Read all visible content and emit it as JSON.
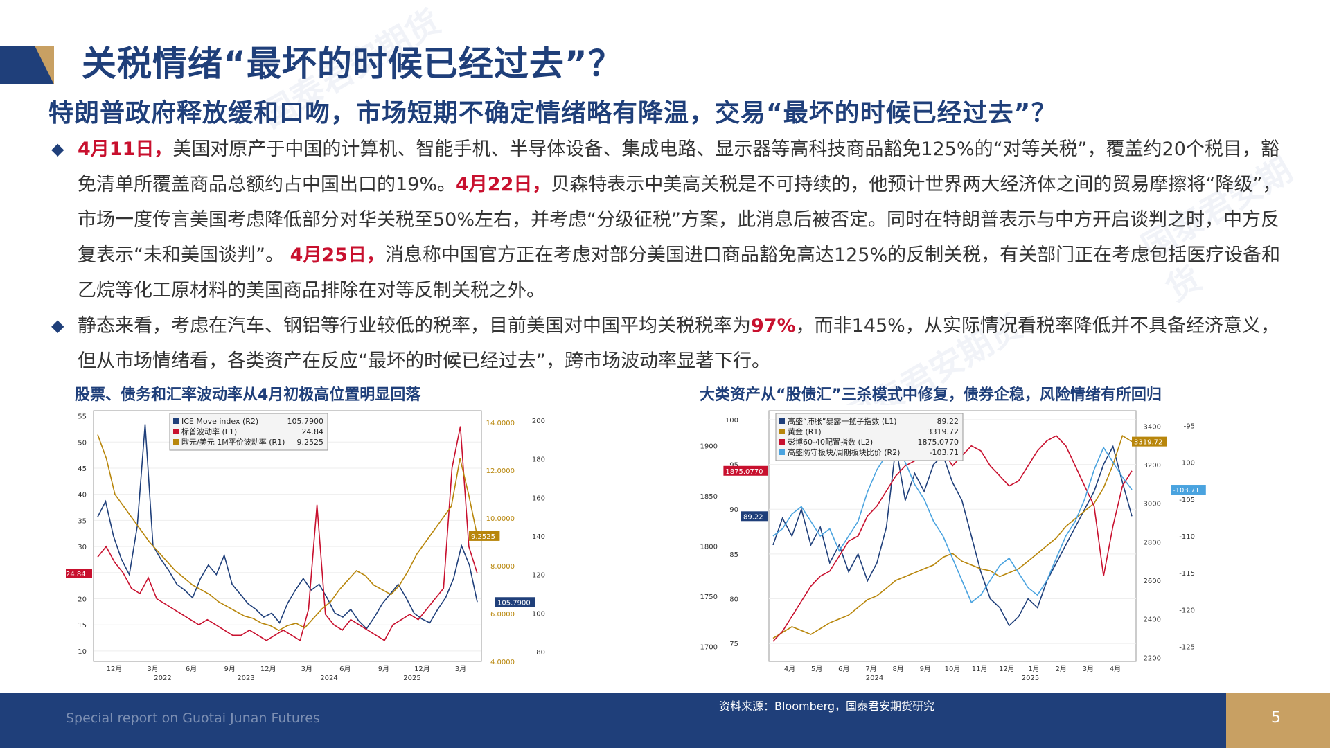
{
  "title": "关税情绪“最坏的时候已经过去”？",
  "subtitle": "特朗普政府释放缓和口吻，市场短期不确定情绪略有降温，交易“最坏的时候已经过去”？",
  "bullet_marker": "◆",
  "bullet1": {
    "d1": "4月11日，",
    "t1": "美国对原产于中国的计算机、智能手机、半导体设备、集成电路、显示器等高科技商品豁免125%的“对等关税”，覆盖约20个税目，豁免清单所覆盖商品总额约占中国出口的19%。",
    "d2": "4月22日，",
    "t2": "贝森特表示中美高关税是不可持续的，他预计世界两大经济体之间的贸易摩擦将“降级”，市场一度传言美国考虑降低部分对华关税至50%左右，并考虑“分级征税”方案，此消息后被否定。同时在特朗普表示与中方开启谈判之时，中方反复表示“未和美国谈判”。 ",
    "d3": "4月25日，",
    "t3": "消息称中国官方正在考虑对部分美国进口商品豁免高达125%的反制关税，有关部门正在考虑包括医疗设备和乙烷等化工原材料的美国商品排除在对等反制关税之外。"
  },
  "bullet2": {
    "t1": "静态来看，考虑在汽车、钢铝等行业较低的税率，目前美国对中国平均关税税率为",
    "hl": "97%",
    "t2": "，而非145%，从实际情况看税率降低并不具备经济意义，但从市场情绪看，各类资产在反应“最坏的时候已经过去”，跨市场波动率显著下行。"
  },
  "footer": {
    "left_text": "Special report on Guotai Junan Futures",
    "source": "资料来源：Bloomberg，国泰君安期货研究",
    "page": "5"
  },
  "watermark": "国泰君安期货",
  "chart_data": [
    {
      "type": "line",
      "title": "股票、债务和汇率波动率从4月初极高位置明显回落",
      "x_ticks": [
        "12月",
        "3月",
        "6月",
        "9月",
        "12月",
        "3月",
        "6月",
        "9月",
        "12月",
        "3月"
      ],
      "year_labels": [
        "2022",
        "2023",
        "2024",
        "2025"
      ],
      "left_axis": {
        "ticks": [
          "55",
          "50",
          "45",
          "40",
          "35",
          "30",
          "25",
          "20",
          "15",
          "10"
        ],
        "range": [
          8,
          56
        ]
      },
      "right_axis_1": {
        "ticks": [
          "14.0000",
          "12.0000",
          "10.0000",
          "8.0000",
          "6.0000",
          "4.0000"
        ],
        "range": [
          4,
          14.5
        ]
      },
      "right_axis_2": {
        "ticks": [
          "200",
          "180",
          "160",
          "140",
          "120",
          "100",
          "80"
        ],
        "range": [
          75,
          205
        ]
      },
      "legend": [
        {
          "name": "ICE Move index (R2)",
          "value": "105.7900",
          "color": "#1f3f7a"
        },
        {
          "name": "标普波动率 (L1)",
          "value": "24.84",
          "color": "#c8102e"
        },
        {
          "name": "欧元/美元 1M平价波动率 (R1)",
          "value": "9.2525",
          "color": "#b8860b"
        }
      ],
      "last_labels": {
        "L1": "24.84",
        "R1": "9.2525",
        "R2": "105.7900"
      },
      "series": [
        {
          "name": "ICE Move index (R2)",
          "axis": "R2",
          "color": "#1f3f7a",
          "values": [
            150,
            158,
            140,
            128,
            120,
            145,
            198,
            135,
            128,
            122,
            115,
            112,
            108,
            118,
            125,
            120,
            130,
            115,
            110,
            105,
            102,
            98,
            100,
            95,
            105,
            112,
            118,
            112,
            115,
            108,
            100,
            98,
            102,
            96,
            92,
            98,
            105,
            110,
            115,
            108,
            100,
            97,
            95,
            102,
            108,
            118,
            135,
            125,
            105.79
          ]
        },
        {
          "name": "标普波动率 (L1)",
          "axis": "L1",
          "color": "#c8102e",
          "values": [
            28,
            30,
            27,
            25,
            22,
            21,
            24,
            20,
            19,
            18,
            17,
            16,
            15,
            16,
            15,
            14,
            13,
            13,
            14,
            13,
            12,
            13,
            14,
            13,
            12,
            18,
            38,
            17,
            15,
            14,
            16,
            15,
            14,
            13,
            12,
            15,
            16,
            17,
            16,
            18,
            20,
            22,
            45,
            53,
            30,
            24.84
          ]
        },
        {
          "name": "欧元/美元 1M平价波动率 (R1)",
          "axis": "R1",
          "color": "#b8860b",
          "values": [
            13.5,
            12.5,
            11.0,
            10.5,
            10.0,
            9.5,
            9.0,
            8.6,
            8.2,
            7.8,
            7.5,
            7.2,
            7.0,
            6.8,
            6.5,
            6.3,
            6.1,
            5.9,
            5.8,
            5.6,
            5.5,
            5.3,
            5.5,
            5.6,
            5.4,
            5.8,
            6.2,
            6.5,
            7.0,
            7.4,
            7.8,
            7.6,
            7.2,
            7.0,
            6.8,
            7.2,
            7.8,
            8.5,
            9.0,
            9.5,
            10.0,
            10.5,
            12.5,
            11.0,
            9.2525
          ]
        }
      ]
    },
    {
      "type": "line",
      "title": "大类资产从“股债汇”三杀模式中修复，债券企稳，风险情绪有所回归",
      "x_ticks": [
        "4月",
        "5月",
        "6月",
        "7月",
        "8月",
        "9月",
        "10月",
        "11月",
        "12月",
        "1月",
        "2月",
        "3月",
        "4月"
      ],
      "year_labels": [
        "2024",
        "2025"
      ],
      "left_axis_L1": {
        "ticks": [
          "100",
          "95",
          "90",
          "85",
          "80",
          "75"
        ],
        "range": [
          73,
          101
        ]
      },
      "left_axis_L2": {
        "ticks": [
          "1900",
          "1850",
          "1800",
          "1750",
          "1700"
        ],
        "range": [
          1685,
          1935
        ]
      },
      "right_axis_R1": {
        "ticks": [
          "3400",
          "3200",
          "3000",
          "2800",
          "2600",
          "2400",
          "2200"
        ],
        "range": [
          2180,
          3480
        ]
      },
      "right_axis_R2": {
        "ticks": [
          "-95",
          "-100",
          "-105",
          "-110",
          "-115",
          "-120",
          "-125"
        ],
        "range": [
          -127,
          -93
        ]
      },
      "legend": [
        {
          "name": "高盛“滞胀”暴露一揽子指数 (L1)",
          "value": "89.22",
          "color": "#1f3f7a"
        },
        {
          "name": "黄金 (R1)",
          "value": "3319.72",
          "color": "#b8860b"
        },
        {
          "name": "彭博60-40配置指数 (L2)",
          "value": "1875.0770",
          "color": "#c8102e"
        },
        {
          "name": "高盛防守板块/周期板块比价 (R2)",
          "value": "-103.71",
          "color": "#4aa3df"
        }
      ],
      "last_labels": {
        "L1": "89.22",
        "R1": "3319.72",
        "L2": "1875.0770",
        "R2": "-103.71"
      },
      "series": [
        {
          "name": "高盛“滞胀”暴露一揽子指数 (L1)",
          "axis": "L1",
          "color": "#1f3f7a",
          "values": [
            86,
            89,
            87,
            90,
            86,
            88,
            84,
            86,
            83,
            85,
            82,
            84,
            88,
            97,
            91,
            94,
            92,
            95,
            96,
            93,
            91,
            87,
            83,
            80,
            79,
            77,
            78,
            80,
            79,
            82,
            84,
            86,
            88,
            90,
            92,
            95,
            97,
            93,
            89.22
          ]
        },
        {
          "name": "黄金 (R1)",
          "axis": "R1",
          "color": "#b8860b",
          "values": [
            2300,
            2330,
            2360,
            2340,
            2320,
            2350,
            2380,
            2400,
            2420,
            2460,
            2500,
            2520,
            2560,
            2600,
            2620,
            2640,
            2660,
            2680,
            2720,
            2740,
            2700,
            2680,
            2660,
            2650,
            2620,
            2640,
            2660,
            2700,
            2740,
            2780,
            2820,
            2880,
            2920,
            2960,
            3000,
            3080,
            3200,
            3350,
            3319.72
          ]
        },
        {
          "name": "彭博60-40配置指数 (L2)",
          "axis": "L2",
          "color": "#c8102e",
          "values": [
            1705,
            1715,
            1730,
            1745,
            1760,
            1770,
            1775,
            1790,
            1805,
            1810,
            1830,
            1840,
            1855,
            1870,
            1880,
            1885,
            1890,
            1900,
            1895,
            1880,
            1890,
            1900,
            1895,
            1880,
            1870,
            1860,
            1865,
            1880,
            1895,
            1905,
            1910,
            1900,
            1880,
            1860,
            1840,
            1770,
            1820,
            1860,
            1875.077
          ]
        },
        {
          "name": "高盛防守板块/周期板块比价 (R2)",
          "axis": "R2",
          "color": "#4aa3df",
          "values": [
            -110,
            -109,
            -107,
            -106,
            -108,
            -110,
            -109,
            -112,
            -110,
            -108,
            -104,
            -101,
            -99,
            -98,
            -100,
            -103,
            -105,
            -108,
            -110,
            -113,
            -116,
            -119,
            -118,
            -116,
            -114,
            -113,
            -115,
            -117,
            -118,
            -116,
            -113,
            -110,
            -108,
            -105,
            -101,
            -98,
            -100,
            -102,
            -103.71
          ]
        }
      ]
    }
  ]
}
